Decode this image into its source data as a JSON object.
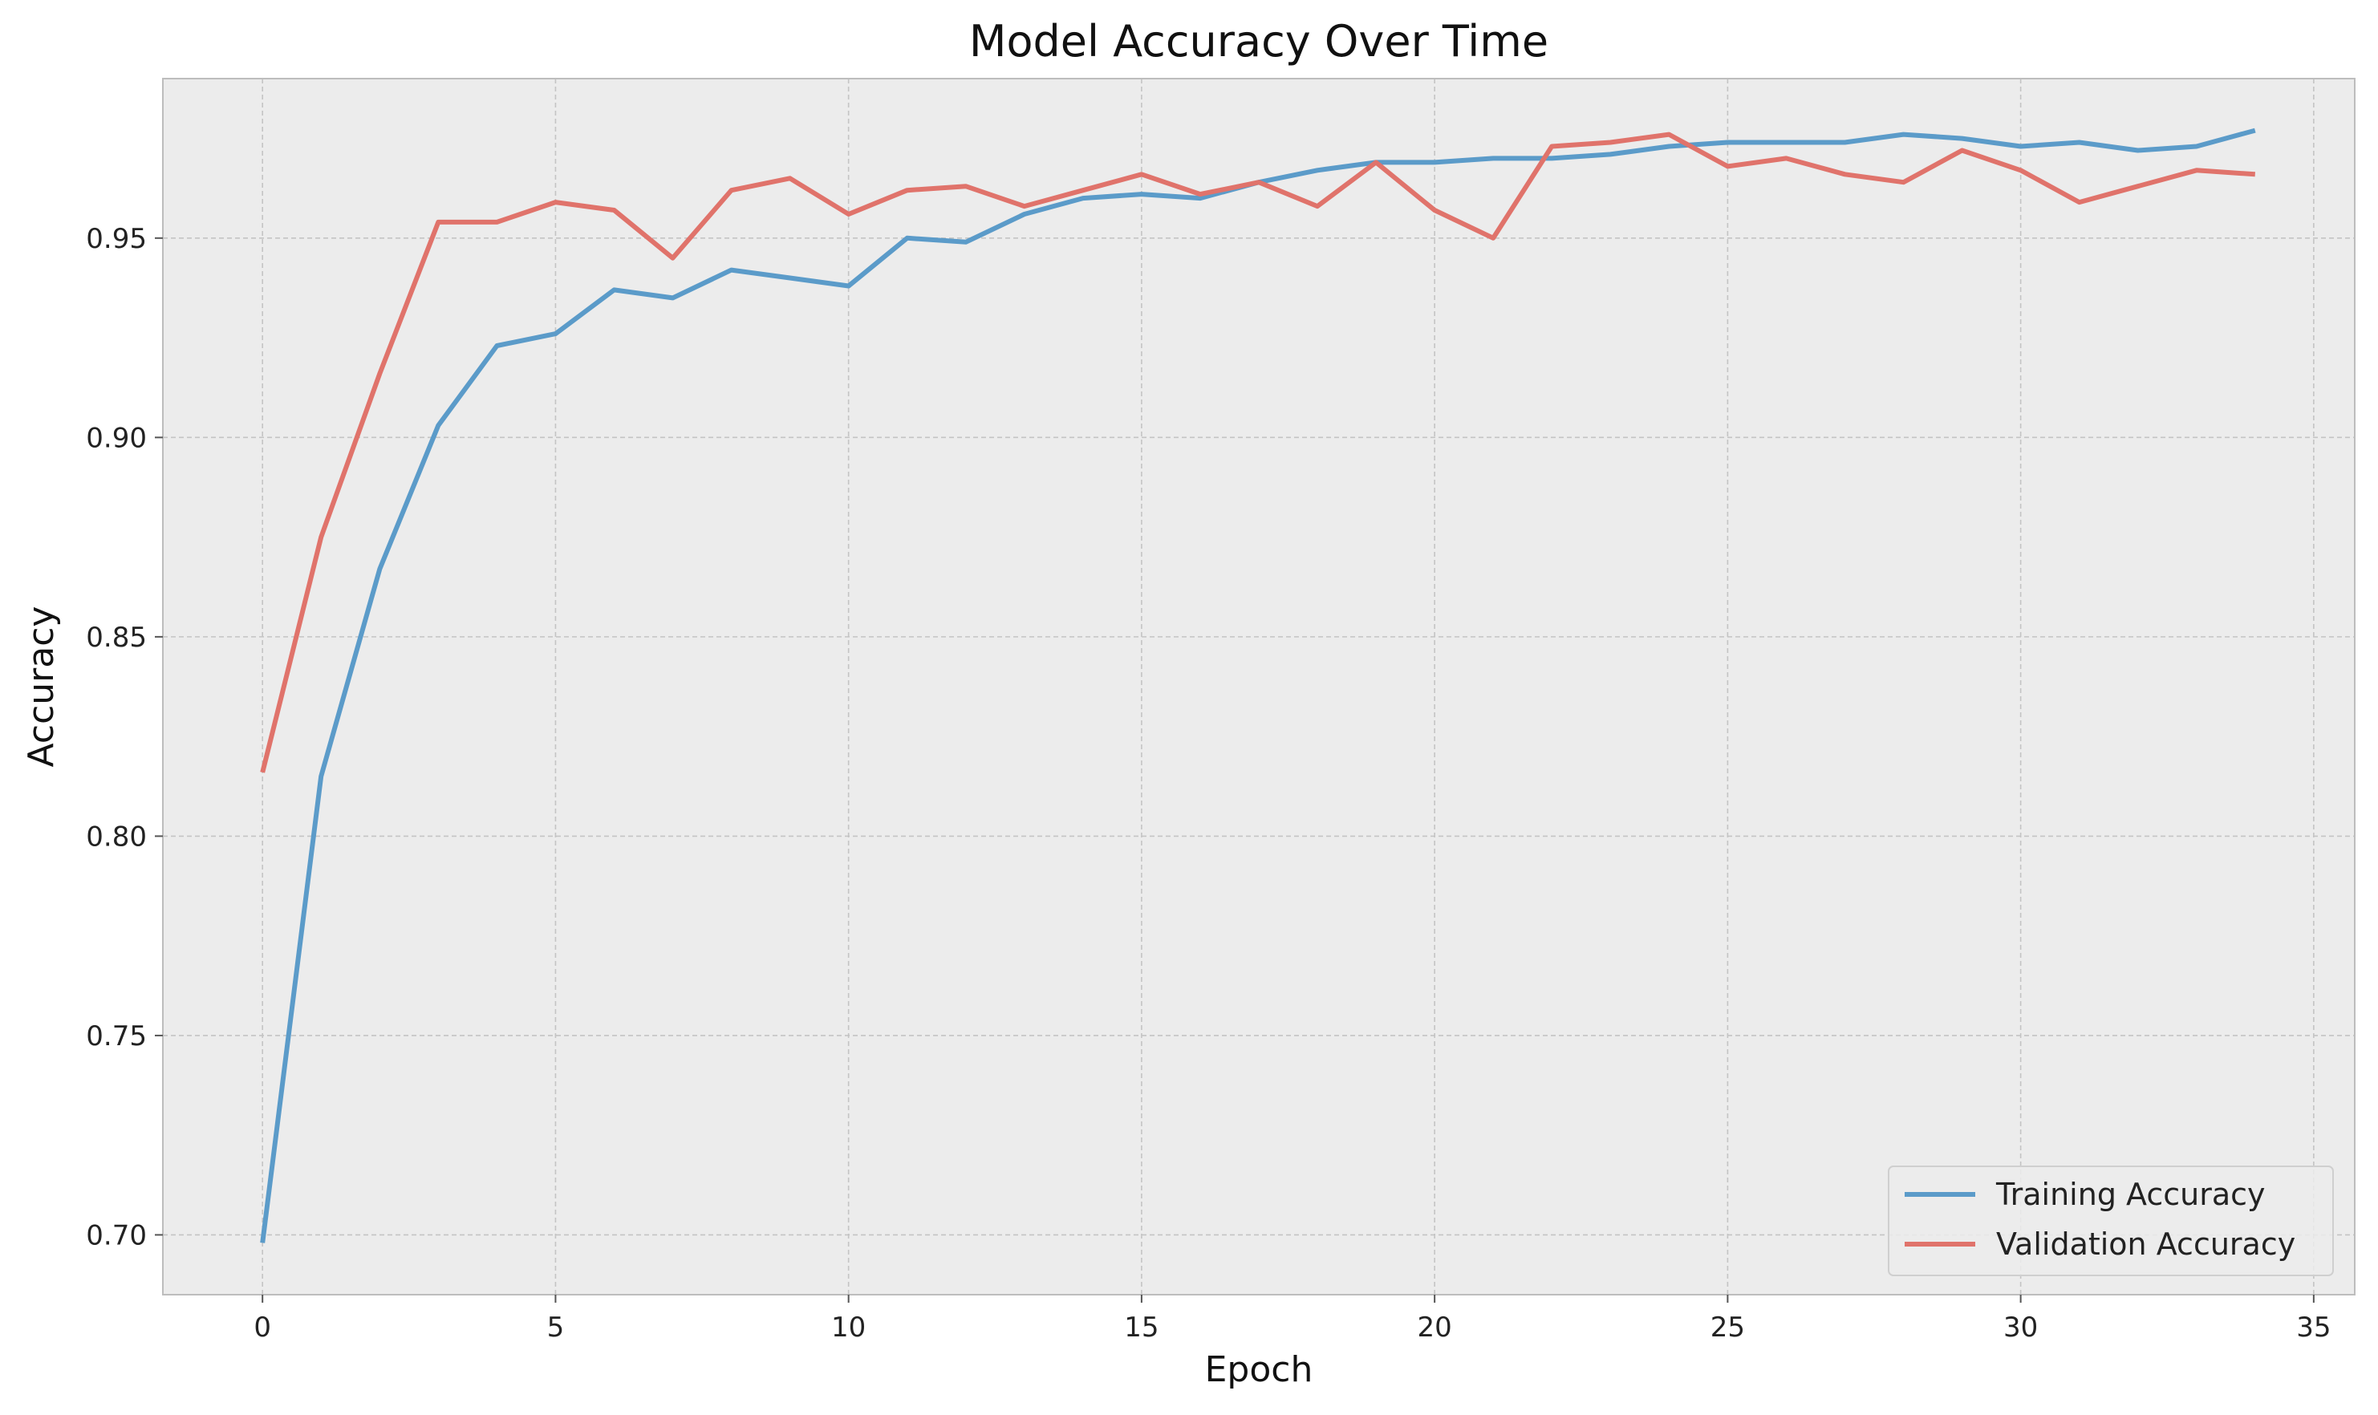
{
  "chart_data": {
    "type": "line",
    "title": "Model Accuracy Over Time",
    "xlabel": "Epoch",
    "ylabel": "Accuracy",
    "xlim": [
      -1.7,
      35.7
    ],
    "ylim": [
      0.685,
      0.99
    ],
    "xticks": [
      0,
      5,
      10,
      15,
      20,
      25,
      30,
      35
    ],
    "yticks": [
      0.7,
      0.75,
      0.8,
      0.85,
      0.9,
      0.95
    ],
    "ytick_labels": [
      "0.70",
      "0.75",
      "0.80",
      "0.85",
      "0.90",
      "0.95"
    ],
    "grid": true,
    "legend_position": "lower-right",
    "x": [
      0,
      1,
      2,
      3,
      4,
      5,
      6,
      7,
      8,
      9,
      10,
      11,
      12,
      13,
      14,
      15,
      16,
      17,
      18,
      19,
      20,
      21,
      22,
      23,
      24,
      25,
      26,
      27,
      28,
      29,
      30,
      31,
      32,
      33,
      34
    ],
    "series": [
      {
        "name": "Training Accuracy",
        "color": "#5b9bc9",
        "values": [
          0.698,
          0.815,
          0.867,
          0.903,
          0.923,
          0.926,
          0.937,
          0.935,
          0.942,
          0.94,
          0.938,
          0.95,
          0.949,
          0.956,
          0.96,
          0.961,
          0.96,
          0.964,
          0.967,
          0.969,
          0.969,
          0.97,
          0.97,
          0.971,
          0.973,
          0.974,
          0.974,
          0.974,
          0.976,
          0.975,
          0.973,
          0.974,
          0.972,
          0.973,
          0.977
        ]
      },
      {
        "name": "Validation Accuracy",
        "color": "#e0736b",
        "values": [
          0.816,
          0.875,
          0.916,
          0.954,
          0.954,
          0.959,
          0.957,
          0.945,
          0.962,
          0.965,
          0.956,
          0.962,
          0.963,
          0.958,
          0.962,
          0.966,
          0.961,
          0.964,
          0.958,
          0.969,
          0.957,
          0.95,
          0.973,
          0.974,
          0.976,
          0.968,
          0.97,
          0.966,
          0.964,
          0.972,
          0.967,
          0.959,
          0.963,
          0.967,
          0.966
        ]
      }
    ]
  },
  "colors": {
    "plot_background": "#ececec",
    "grid": "#c4c4c4",
    "spine": "#bdbdbd"
  }
}
